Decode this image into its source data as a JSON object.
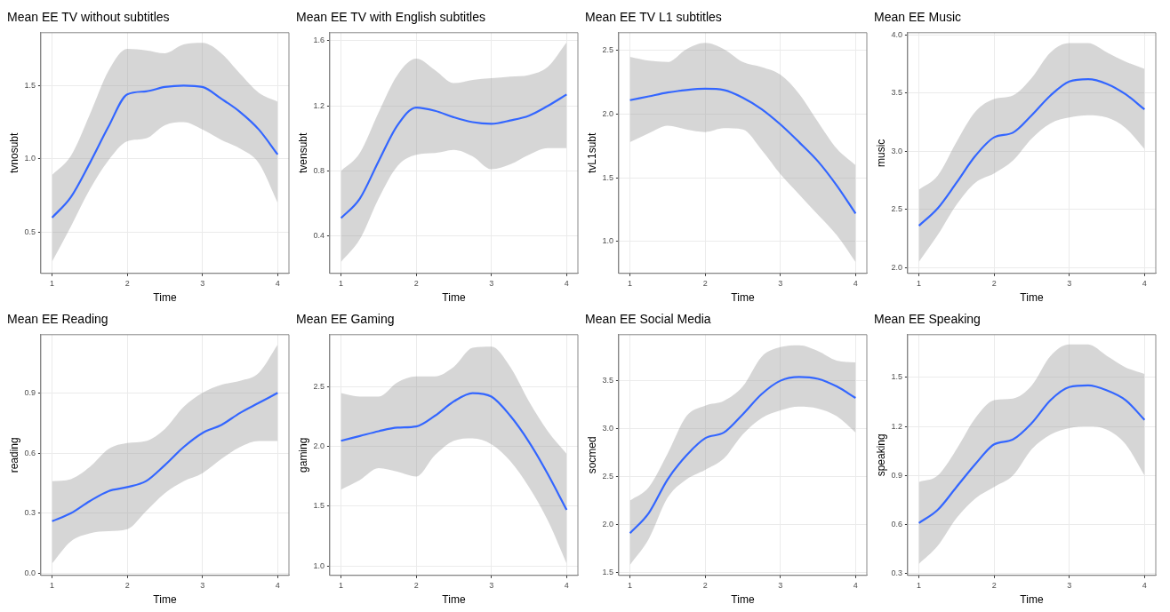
{
  "chart_data": [
    {
      "type": "line",
      "title": "Mean EE TV without subtitles",
      "xlabel": "Time",
      "ylabel": "tvnosubt",
      "x": [
        1,
        1.25,
        1.5,
        1.75,
        2,
        2.25,
        2.5,
        2.75,
        3,
        3.25,
        3.5,
        3.75,
        4
      ],
      "xlim": [
        0.85,
        4.15
      ],
      "xticks": [
        1,
        2,
        3,
        4
      ],
      "ylim": [
        0.22,
        1.86
      ],
      "yticks": [
        0.5,
        {
          "value": 1,
          "label": "1.0"
        },
        1.5
      ],
      "grid": true,
      "marker": "none",
      "series": [
        {
          "color": "#3366ff",
          "values": [
            0.6,
            0.74,
            0.97,
            1.22,
            1.44,
            1.46,
            1.49,
            1.5,
            1.49,
            1.41,
            1.32,
            1.2,
            1.03
          ],
          "lower": [
            0.3,
            0.54,
            0.79,
            0.99,
            1.12,
            1.14,
            1.23,
            1.25,
            1.2,
            1.13,
            1.07,
            0.97,
            0.7
          ],
          "upper": [
            0.89,
            1.02,
            1.3,
            1.6,
            1.75,
            1.74,
            1.72,
            1.78,
            1.79,
            1.72,
            1.58,
            1.45,
            1.39
          ]
        }
      ]
    },
    {
      "type": "line",
      "title": "Mean EE TV with English subtitles",
      "xlabel": "Time",
      "ylabel": "tvensubt",
      "x": [
        1,
        1.25,
        1.5,
        1.75,
        2,
        2.25,
        2.5,
        2.75,
        3,
        3.25,
        3.5,
        3.75,
        4
      ],
      "xlim": [
        0.85,
        4.15
      ],
      "xticks": [
        1,
        2,
        3,
        4
      ],
      "ylim": [
        0.17,
        1.65
      ],
      "yticks": [
        0.4,
        0.8,
        1.2,
        1.6
      ],
      "grid": true,
      "marker": "none",
      "series": [
        {
          "color": "#3366ff",
          "values": [
            0.51,
            0.63,
            0.86,
            1.08,
            1.19,
            1.17,
            1.13,
            1.1,
            1.09,
            1.11,
            1.14,
            1.2,
            1.27
          ],
          "lower": [
            0.24,
            0.38,
            0.63,
            0.83,
            0.9,
            0.91,
            0.93,
            0.89,
            0.81,
            0.84,
            0.9,
            0.94,
            0.94
          ],
          "upper": [
            0.8,
            0.91,
            1.16,
            1.39,
            1.49,
            1.42,
            1.34,
            1.36,
            1.37,
            1.38,
            1.39,
            1.44,
            1.59
          ]
        }
      ]
    },
    {
      "type": "line",
      "title": "Mean EE TV L1 subtitles",
      "xlabel": "Time",
      "ylabel": "tvL1subt",
      "x": [
        1,
        1.25,
        1.5,
        1.75,
        2,
        2.25,
        2.5,
        2.75,
        3,
        3.25,
        3.5,
        3.75,
        4
      ],
      "xlim": [
        0.85,
        4.15
      ],
      "xticks": [
        1,
        2,
        3,
        4
      ],
      "ylim": [
        0.75,
        2.64
      ],
      "yticks": [
        {
          "value": 1,
          "label": "1.0"
        },
        1.5,
        {
          "value": 2,
          "label": "2.0"
        },
        2.5
      ],
      "grid": true,
      "marker": "none",
      "series": [
        {
          "color": "#3366ff",
          "values": [
            2.11,
            2.14,
            2.17,
            2.19,
            2.2,
            2.19,
            2.13,
            2.04,
            1.92,
            1.78,
            1.63,
            1.44,
            1.22
          ],
          "lower": [
            1.78,
            1.85,
            1.91,
            1.88,
            1.86,
            1.89,
            1.88,
            1.72,
            1.53,
            1.37,
            1.21,
            1.05,
            0.84
          ],
          "upper": [
            2.45,
            2.42,
            2.41,
            2.51,
            2.56,
            2.51,
            2.41,
            2.37,
            2.31,
            2.16,
            1.94,
            1.73,
            1.6
          ]
        }
      ]
    },
    {
      "type": "line",
      "title": "Mean EE Music",
      "xlabel": "Time",
      "ylabel": "music",
      "x": [
        1,
        1.25,
        1.5,
        1.75,
        2,
        2.25,
        2.5,
        2.75,
        3,
        3.25,
        3.5,
        3.75,
        4
      ],
      "xlim": [
        0.85,
        4.15
      ],
      "xticks": [
        1,
        2,
        3,
        4
      ],
      "ylim": [
        1.95,
        4.02
      ],
      "yticks": [
        {
          "value": 2,
          "label": "2.0"
        },
        2.5,
        {
          "value": 3,
          "label": "3.0"
        },
        3.5,
        {
          "value": 4,
          "label": "4.0"
        }
      ],
      "grid": true,
      "marker": "none",
      "series": [
        {
          "color": "#3366ff",
          "values": [
            2.36,
            2.51,
            2.73,
            2.96,
            3.12,
            3.16,
            3.31,
            3.48,
            3.6,
            3.62,
            3.58,
            3.49,
            3.36
          ],
          "lower": [
            2.05,
            2.28,
            2.54,
            2.73,
            2.81,
            2.92,
            3.11,
            3.24,
            3.29,
            3.31,
            3.29,
            3.2,
            3.02
          ],
          "upper": [
            2.67,
            2.79,
            3.08,
            3.34,
            3.45,
            3.48,
            3.63,
            3.85,
            3.93,
            3.93,
            3.85,
            3.77,
            3.71
          ]
        }
      ]
    },
    {
      "type": "line",
      "title": "Mean EE Reading",
      "xlabel": "Time",
      "ylabel": "reading",
      "x": [
        1,
        1.25,
        1.5,
        1.75,
        2,
        2.25,
        2.5,
        2.75,
        3,
        3.25,
        3.5,
        3.75,
        4
      ],
      "xlim": [
        0.85,
        4.15
      ],
      "xticks": [
        1,
        2,
        3,
        4
      ],
      "ylim": [
        -0.01,
        1.19
      ],
      "yticks": [
        {
          "value": 0,
          "label": "0.0"
        },
        0.3,
        0.6,
        0.9
      ],
      "grid": true,
      "marker": "none",
      "series": [
        {
          "color": "#3366ff",
          "values": [
            0.26,
            0.3,
            0.36,
            0.41,
            0.43,
            0.46,
            0.54,
            0.63,
            0.7,
            0.74,
            0.8,
            0.85,
            0.9
          ],
          "lower": [
            0.05,
            0.16,
            0.2,
            0.21,
            0.22,
            0.31,
            0.4,
            0.46,
            0.5,
            0.57,
            0.63,
            0.66,
            0.66
          ],
          "upper": [
            0.46,
            0.47,
            0.53,
            0.62,
            0.65,
            0.66,
            0.72,
            0.83,
            0.9,
            0.94,
            0.96,
            1,
            1.14
          ]
        }
      ]
    },
    {
      "type": "line",
      "title": "Mean EE Gaming",
      "xlabel": "Time",
      "ylabel": "gaming",
      "x": [
        1,
        1.25,
        1.5,
        1.75,
        2,
        2.25,
        2.5,
        2.75,
        3,
        3.25,
        3.5,
        3.75,
        4
      ],
      "xlim": [
        0.85,
        4.15
      ],
      "xticks": [
        1,
        2,
        3,
        4
      ],
      "ylim": [
        0.92,
        2.94
      ],
      "yticks": [
        {
          "value": 1,
          "label": "1.0"
        },
        1.5,
        {
          "value": 2,
          "label": "2.0"
        },
        2.5
      ],
      "grid": true,
      "marker": "none",
      "series": [
        {
          "color": "#3366ff",
          "values": [
            2.05,
            2.09,
            2.13,
            2.16,
            2.17,
            2.26,
            2.38,
            2.45,
            2.42,
            2.26,
            2.04,
            1.77,
            1.47
          ],
          "lower": [
            1.64,
            1.72,
            1.82,
            1.79,
            1.75,
            1.93,
            2.05,
            2.07,
            2.02,
            1.88,
            1.66,
            1.38,
            1.02
          ],
          "upper": [
            2.45,
            2.42,
            2.42,
            2.54,
            2.59,
            2.59,
            2.67,
            2.83,
            2.84,
            2.67,
            2.38,
            2.13,
            1.94
          ]
        }
      ]
    },
    {
      "type": "line",
      "title": "Mean EE Social Media",
      "xlabel": "Time",
      "ylabel": "socmed",
      "x": [
        1,
        1.25,
        1.5,
        1.75,
        2,
        2.25,
        2.5,
        2.75,
        3,
        3.25,
        3.5,
        3.75,
        4
      ],
      "xlim": [
        0.85,
        4.15
      ],
      "xticks": [
        1,
        2,
        3,
        4
      ],
      "ylim": [
        1.47,
        3.98
      ],
      "yticks": [
        1.5,
        {
          "value": 2,
          "label": "2.0"
        },
        2.5,
        {
          "value": 3,
          "label": "3.0"
        },
        3.5
      ],
      "grid": true,
      "marker": "none",
      "series": [
        {
          "color": "#3366ff",
          "values": [
            1.91,
            2.12,
            2.47,
            2.72,
            2.9,
            2.96,
            3.15,
            3.36,
            3.5,
            3.54,
            3.52,
            3.44,
            3.32
          ],
          "lower": [
            1.58,
            1.85,
            2.28,
            2.47,
            2.57,
            2.69,
            2.94,
            3.11,
            3.19,
            3.23,
            3.21,
            3.13,
            2.96
          ],
          "upper": [
            2.25,
            2.39,
            2.74,
            3.13,
            3.24,
            3.29,
            3.44,
            3.75,
            3.85,
            3.87,
            3.81,
            3.71,
            3.69
          ]
        }
      ]
    },
    {
      "type": "line",
      "title": "Mean EE Speaking",
      "xlabel": "Time",
      "ylabel": "speaking",
      "x": [
        1,
        1.25,
        1.5,
        1.75,
        2,
        2.25,
        2.5,
        2.75,
        3,
        3.25,
        3.5,
        3.75,
        4
      ],
      "xlim": [
        0.85,
        4.15
      ],
      "xticks": [
        1,
        2,
        3,
        4
      ],
      "ylim": [
        0.29,
        1.76
      ],
      "yticks": [
        0.3,
        0.6,
        0.9,
        1.2,
        1.5
      ],
      "grid": true,
      "marker": "none",
      "series": [
        {
          "color": "#3366ff",
          "values": [
            0.61,
            0.69,
            0.83,
            0.97,
            1.09,
            1.12,
            1.22,
            1.36,
            1.44,
            1.45,
            1.42,
            1.36,
            1.24
          ],
          "lower": [
            0.36,
            0.47,
            0.64,
            0.76,
            0.83,
            0.9,
            1.06,
            1.15,
            1.19,
            1.2,
            1.18,
            1.09,
            0.9
          ],
          "upper": [
            0.86,
            0.9,
            1.06,
            1.25,
            1.36,
            1.37,
            1.45,
            1.63,
            1.7,
            1.7,
            1.63,
            1.56,
            1.52
          ]
        }
      ]
    }
  ]
}
